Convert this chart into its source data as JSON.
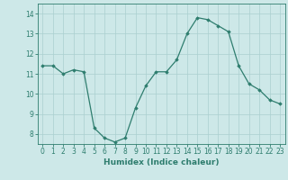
{
  "x": [
    0,
    1,
    2,
    3,
    4,
    5,
    6,
    7,
    8,
    9,
    10,
    11,
    12,
    13,
    14,
    15,
    16,
    17,
    18,
    19,
    20,
    21,
    22,
    23
  ],
  "y": [
    11.4,
    11.4,
    11.0,
    11.2,
    11.1,
    8.3,
    7.8,
    7.6,
    7.8,
    9.3,
    10.4,
    11.1,
    11.1,
    11.7,
    13.0,
    13.8,
    13.7,
    13.4,
    13.1,
    11.4,
    10.5,
    10.2,
    9.7,
    9.5
  ],
  "xlabel": "Humidex (Indice chaleur)",
  "ylim": [
    7.5,
    14.5
  ],
  "xlim": [
    -0.5,
    23.5
  ],
  "yticks": [
    8,
    9,
    10,
    11,
    12,
    13,
    14
  ],
  "xticks": [
    0,
    1,
    2,
    3,
    4,
    5,
    6,
    7,
    8,
    9,
    10,
    11,
    12,
    13,
    14,
    15,
    16,
    17,
    18,
    19,
    20,
    21,
    22,
    23
  ],
  "line_color": "#2e7d6e",
  "marker": "D",
  "marker_size": 1.8,
  "line_width": 0.9,
  "bg_color": "#cde8e8",
  "grid_color": "#aacfcf",
  "axis_color": "#2e7d6e",
  "tick_color": "#2e7d6e",
  "label_color": "#2e7d6e",
  "xlabel_fontsize": 6.5,
  "tick_fontsize": 5.5
}
